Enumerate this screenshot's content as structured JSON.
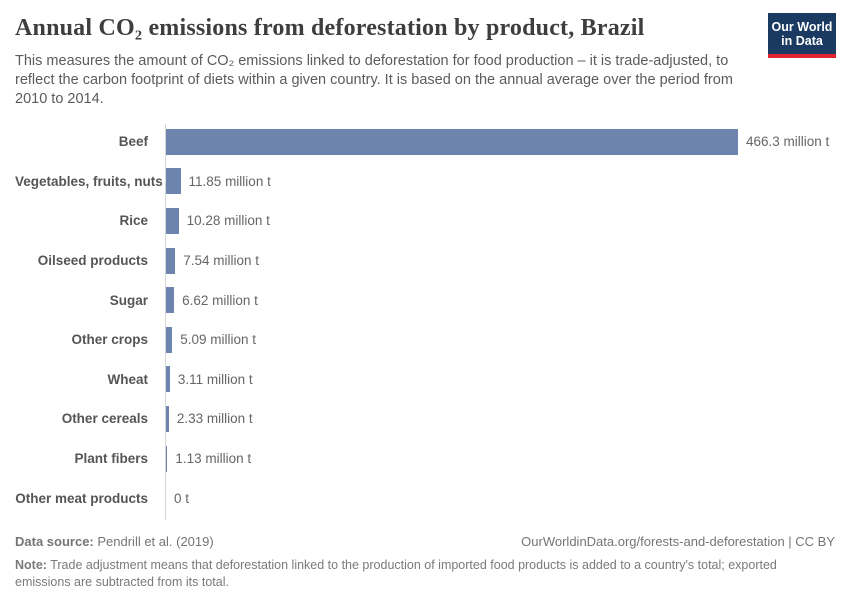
{
  "header": {
    "title": "Annual CO₂ emissions from deforestation by product, Brazil",
    "subtitle": "This measures the amount of CO₂ emissions linked to deforestation for food production – it is trade-adjusted, to reflect the carbon footprint of diets within a given country. It is based on the annual average over the period from 2010 to 2014.",
    "logo": {
      "line1": "Our World",
      "line2": "in Data",
      "bg_color": "#1a3a62",
      "accent_color": "#e0232e"
    }
  },
  "chart_data": {
    "type": "bar",
    "orientation": "horizontal",
    "title": "Annual CO₂ emissions from deforestation by product, Brazil",
    "categories": [
      "Beef",
      "Vegetables, fruits, nuts",
      "Rice",
      "Oilseed products",
      "Sugar",
      "Other crops",
      "Wheat",
      "Other cereals",
      "Plant fibers",
      "Other meat products"
    ],
    "values": [
      466.3,
      11.85,
      10.28,
      7.54,
      6.62,
      5.09,
      3.11,
      2.33,
      1.13,
      0
    ],
    "value_labels": [
      "466.3 million t",
      "11.85 million t",
      "10.28 million t",
      "7.54 million t",
      "6.62 million t",
      "5.09 million t",
      "3.11 million t",
      "2.33 million t",
      "1.13 million t",
      "0 t"
    ],
    "unit": "million t",
    "xlim": [
      0,
      466.3
    ],
    "bar_color": "#6d84ae",
    "grid": false,
    "legend": false
  },
  "footer": {
    "datasource_label": "Data source:",
    "datasource_value": " Pendrill et al. (2019)",
    "credit": "OurWorldinData.org/forests-and-deforestation | CC BY",
    "note_label": "Note:",
    "note_text": " Trade adjustment means that deforestation linked to the production of imported food products is added to a country's total; exported emissions are subtracted from its total."
  }
}
